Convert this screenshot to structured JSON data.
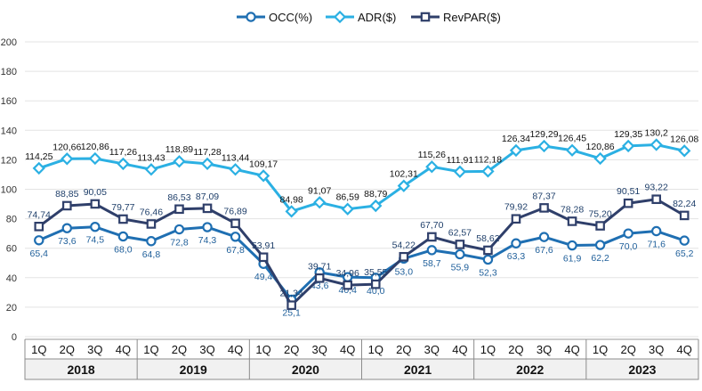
{
  "chart_data": {
    "type": "line",
    "title": "",
    "xlabel": "",
    "ylabel": "",
    "ylim": [
      0,
      200
    ],
    "yticks": [
      "0",
      "20",
      "40",
      "60",
      "80",
      "100",
      "120",
      "140",
      "160",
      "180",
      "200"
    ],
    "grid": true,
    "legend_position": "top-center",
    "quarters": [
      "1Q",
      "2Q",
      "3Q",
      "4Q",
      "1Q",
      "2Q",
      "3Q",
      "4Q",
      "1Q",
      "2Q",
      "3Q",
      "4Q",
      "1Q",
      "2Q",
      "3Q",
      "4Q",
      "1Q",
      "2Q",
      "3Q",
      "4Q",
      "1Q",
      "2Q",
      "3Q",
      "4Q"
    ],
    "years": [
      "2018",
      "2019",
      "2020",
      "2021",
      "2022",
      "2023"
    ],
    "series": [
      {
        "name": "OCC(%)",
        "color": "#1f6fb2",
        "marker": "circle",
        "values": [
          65.4,
          73.6,
          74.5,
          68.0,
          64.8,
          72.8,
          74.3,
          67.8,
          49.4,
          25.1,
          43.6,
          40.4,
          40.0,
          53.0,
          58.7,
          55.9,
          52.3,
          63.3,
          67.6,
          61.9,
          62.2,
          70.0,
          71.6,
          65.2
        ],
        "labels": [
          "65,4",
          "73,6",
          "74,5",
          "68,0",
          "64,8",
          "72,8",
          "74,3",
          "67,8",
          "49,4",
          "25,1",
          "43,6",
          "40,4",
          "40,0",
          "53,0",
          "58,7",
          "55,9",
          "52,3",
          "63,3",
          "67,6",
          "61,9",
          "62,2",
          "70,0",
          "71,6",
          "65,2"
        ]
      },
      {
        "name": "ADR($)",
        "color": "#2bb0e3",
        "marker": "diamond",
        "values": [
          114.25,
          120.66,
          120.86,
          117.26,
          113.43,
          118.89,
          117.28,
          113.44,
          109.17,
          84.98,
          91.07,
          86.59,
          88.79,
          102.31,
          115.26,
          111.91,
          112.18,
          126.34,
          129.29,
          126.45,
          120.86,
          129.35,
          130.2,
          126.08
        ],
        "labels": [
          "114,25",
          "120,66",
          "120,86",
          "117,26",
          "113,43",
          "118,89",
          "117,28",
          "113,44",
          "109,17",
          "84,98",
          "91,07",
          "86,59",
          "88,79",
          "102,31",
          "115,26",
          "111,91",
          "112,18",
          "126,34",
          "129,29",
          "126,45",
          "120,86",
          "129,35",
          "130,2",
          "126,08"
        ]
      },
      {
        "name": "RevPAR($)",
        "color": "#2f3f6a",
        "marker": "square",
        "values": [
          74.74,
          88.85,
          90.05,
          79.77,
          76.46,
          86.53,
          87.09,
          76.89,
          53.91,
          21.34,
          39.71,
          34.96,
          35.55,
          54.22,
          67.7,
          62.57,
          58.62,
          79.92,
          87.37,
          78.28,
          75.2,
          90.51,
          93.22,
          82.24
        ],
        "labels": [
          "74,74",
          "88,85",
          "90,05",
          "79,77",
          "76,46",
          "86,53",
          "87,09",
          "76,89",
          "53,91",
          "21,34",
          "39,71",
          "34,96",
          "35,55",
          "54,22",
          "67,70",
          "62,57",
          "58,62",
          "79,92",
          "87,37",
          "78,28",
          "75,20",
          "90,51",
          "93,22",
          "82,24"
        ]
      }
    ]
  }
}
